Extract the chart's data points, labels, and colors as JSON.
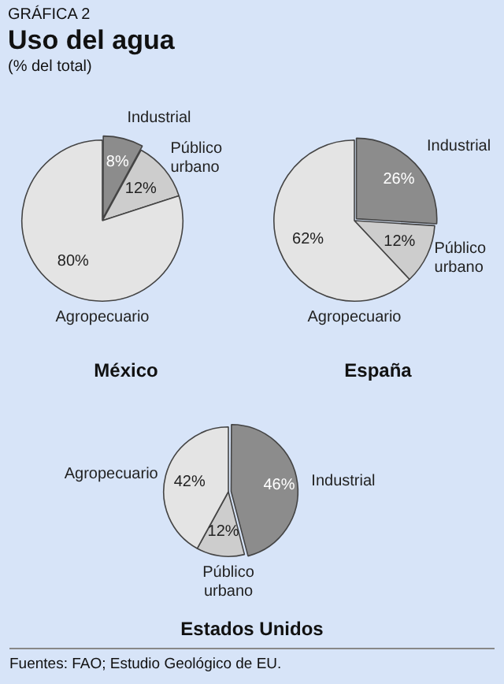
{
  "chart_data": [
    {
      "type": "pie",
      "title": "México",
      "categories": [
        "Industrial",
        "Público urbano",
        "Agropecuario"
      ],
      "values": [
        8,
        12,
        80
      ],
      "colors": [
        "#8c8c8c",
        "#cdcdcd",
        "#e4e4e4"
      ],
      "value_labels": [
        "8%",
        "12%",
        "80%"
      ],
      "annotations": [
        "GRÁFICA 2",
        "Uso del agua",
        "(% del total)"
      ]
    },
    {
      "type": "pie",
      "title": "España",
      "categories": [
        "Industrial",
        "Público urbano",
        "Agropecuario"
      ],
      "values": [
        26,
        12,
        62
      ],
      "colors": [
        "#8c8c8c",
        "#cdcdcd",
        "#e4e4e4"
      ],
      "value_labels": [
        "26%",
        "12%",
        "62%"
      ]
    },
    {
      "type": "pie",
      "title": "Estados Unidos",
      "categories": [
        "Industrial",
        "Público urbano",
        "Agropecuario"
      ],
      "values": [
        46,
        12,
        42
      ],
      "colors": [
        "#8c8c8c",
        "#cdcdcd",
        "#e4e4e4"
      ],
      "value_labels": [
        "46%",
        "12%",
        "42%"
      ],
      "annotations": [
        "Fuentes:  FAO; Estudio Geológico de EU."
      ]
    }
  ]
}
